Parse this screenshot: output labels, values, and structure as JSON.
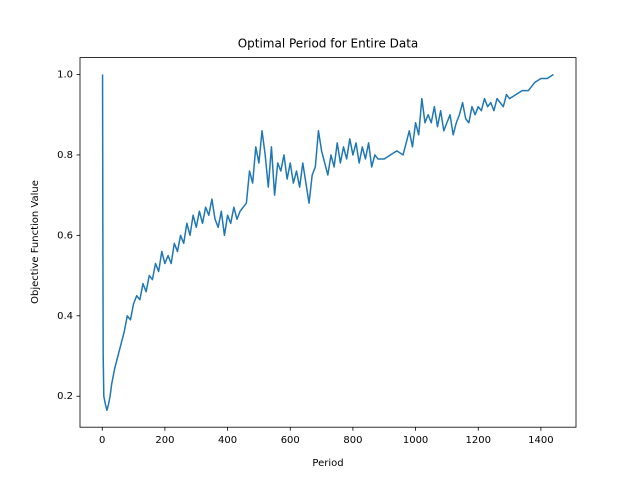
{
  "chart_data": {
    "type": "line",
    "title": "Optimal Period for Entire Data",
    "x_label": "Period",
    "y_label": "Objective Function Value",
    "color": "#1f77b4",
    "x": [
      1,
      2,
      3,
      5,
      10,
      15,
      20,
      25,
      30,
      40,
      50,
      60,
      70,
      80,
      90,
      100,
      110,
      120,
      130,
      140,
      150,
      160,
      170,
      180,
      190,
      200,
      210,
      220,
      230,
      240,
      250,
      260,
      270,
      280,
      290,
      300,
      310,
      320,
      330,
      340,
      350,
      360,
      370,
      380,
      390,
      400,
      410,
      420,
      430,
      440,
      450,
      460,
      470,
      480,
      490,
      500,
      510,
      520,
      530,
      540,
      550,
      560,
      570,
      580,
      590,
      600,
      610,
      620,
      630,
      640,
      650,
      660,
      670,
      680,
      690,
      700,
      710,
      720,
      730,
      740,
      750,
      760,
      770,
      780,
      790,
      800,
      810,
      820,
      830,
      840,
      850,
      860,
      870,
      880,
      900,
      920,
      940,
      960,
      980,
      990,
      1000,
      1010,
      1020,
      1030,
      1040,
      1050,
      1060,
      1070,
      1080,
      1090,
      1100,
      1110,
      1120,
      1130,
      1140,
      1150,
      1160,
      1170,
      1180,
      1190,
      1200,
      1210,
      1220,
      1230,
      1240,
      1250,
      1260,
      1270,
      1280,
      1290,
      1300,
      1320,
      1340,
      1360,
      1380,
      1400,
      1420,
      1440
    ],
    "values": [
      1.0,
      0.6,
      0.3,
      0.2,
      0.18,
      0.165,
      0.18,
      0.2,
      0.23,
      0.27,
      0.3,
      0.33,
      0.36,
      0.4,
      0.39,
      0.43,
      0.45,
      0.44,
      0.48,
      0.46,
      0.5,
      0.49,
      0.53,
      0.51,
      0.56,
      0.53,
      0.55,
      0.53,
      0.58,
      0.56,
      0.6,
      0.58,
      0.63,
      0.6,
      0.65,
      0.62,
      0.66,
      0.63,
      0.67,
      0.65,
      0.69,
      0.64,
      0.62,
      0.66,
      0.6,
      0.65,
      0.63,
      0.67,
      0.64,
      0.66,
      0.67,
      0.68,
      0.76,
      0.73,
      0.82,
      0.78,
      0.86,
      0.8,
      0.72,
      0.82,
      0.7,
      0.78,
      0.76,
      0.8,
      0.74,
      0.78,
      0.73,
      0.76,
      0.72,
      0.78,
      0.73,
      0.68,
      0.75,
      0.77,
      0.86,
      0.81,
      0.78,
      0.75,
      0.8,
      0.77,
      0.83,
      0.78,
      0.82,
      0.79,
      0.84,
      0.8,
      0.83,
      0.78,
      0.82,
      0.79,
      0.83,
      0.77,
      0.8,
      0.79,
      0.79,
      0.8,
      0.81,
      0.8,
      0.86,
      0.82,
      0.88,
      0.85,
      0.94,
      0.88,
      0.9,
      0.88,
      0.92,
      0.87,
      0.91,
      0.86,
      0.88,
      0.9,
      0.85,
      0.88,
      0.9,
      0.93,
      0.89,
      0.88,
      0.92,
      0.9,
      0.92,
      0.91,
      0.94,
      0.92,
      0.93,
      0.91,
      0.94,
      0.93,
      0.92,
      0.95,
      0.94,
      0.95,
      0.96,
      0.96,
      0.98,
      0.99,
      0.99,
      1.0
    ],
    "xlim": [
      -71,
      1512
    ],
    "ylim": [
      0.123,
      1.042
    ],
    "xticks": [
      0,
      200,
      400,
      600,
      800,
      1000,
      1200,
      1400
    ],
    "yticks": [
      0.2,
      0.4,
      0.6,
      0.8,
      {
        "value": 1,
        "label": "1.0"
      }
    ]
  }
}
